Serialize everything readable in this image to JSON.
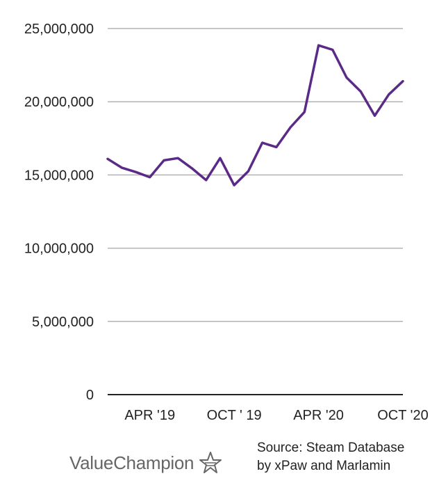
{
  "chart_data": {
    "type": "line",
    "title": "",
    "xlabel": "",
    "ylabel": "",
    "ylim": [
      0,
      25000000
    ],
    "y_ticks": [
      0,
      5000000,
      10000000,
      15000000,
      20000000,
      25000000
    ],
    "y_tick_labels": [
      "0",
      "5,000,000",
      "10,000,000",
      "15,000,000",
      "20,000,000",
      "25,000,000"
    ],
    "x_tick_labels": [
      "APR '19",
      "OCT ' 19",
      "APR '20",
      "OCT '20"
    ],
    "x_tick_positions": [
      3,
      9,
      15,
      21
    ],
    "xlim": [
      0,
      21
    ],
    "grid": true,
    "series": [
      {
        "color": "#5b2a86",
        "values": [
          16100000,
          15500000,
          15200000,
          14850000,
          16000000,
          16150000,
          15450000,
          14650000,
          16150000,
          14300000,
          15250000,
          17200000,
          16900000,
          18250000,
          19300000,
          23850000,
          23550000,
          21650000,
          20700000,
          19050000,
          20500000,
          21400000
        ]
      }
    ]
  },
  "footer": {
    "brand": "ValueChampion",
    "brand_icon": "star-outline-icon",
    "source_line1": "Source: Steam Database",
    "source_line2": "by xPaw and Marlamin"
  }
}
